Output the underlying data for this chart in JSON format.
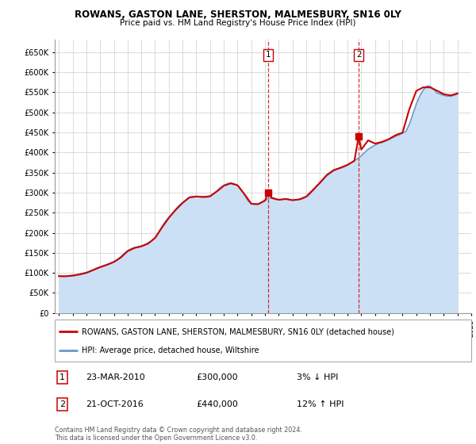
{
  "title": "ROWANS, GASTON LANE, SHERSTON, MALMESBURY, SN16 0LY",
  "subtitle": "Price paid vs. HM Land Registry's House Price Index (HPI)",
  "ylim": [
    0,
    680000
  ],
  "yticks": [
    0,
    50000,
    100000,
    150000,
    200000,
    250000,
    300000,
    350000,
    400000,
    450000,
    500000,
    550000,
    600000,
    650000
  ],
  "ytick_labels": [
    "£0",
    "£50K",
    "£100K",
    "£150K",
    "£200K",
    "£250K",
    "£300K",
    "£350K",
    "£400K",
    "£450K",
    "£500K",
    "£550K",
    "£600K",
    "£650K"
  ],
  "house_color": "#cc0000",
  "hpi_color": "#6699cc",
  "hpi_fill_color": "#cce0f5",
  "sale1_x": 2010.23,
  "sale1_y": 300000,
  "sale1_date": "23-MAR-2010",
  "sale1_price": "£300,000",
  "sale1_hpi": "3% ↓ HPI",
  "sale2_x": 2016.81,
  "sale2_y": 440000,
  "sale2_date": "21-OCT-2016",
  "sale2_price": "£440,000",
  "sale2_hpi": "12% ↑ HPI",
  "legend_house": "ROWANS, GASTON LANE, SHERSTON, MALMESBURY, SN16 0LY (detached house)",
  "legend_hpi": "HPI: Average price, detached house, Wiltshire",
  "footer": "Contains HM Land Registry data © Crown copyright and database right 2024.\nThis data is licensed under the Open Government Licence v3.0.",
  "hpi_data_x": [
    1995.0,
    1995.25,
    1995.5,
    1995.75,
    1996.0,
    1996.25,
    1996.5,
    1996.75,
    1997.0,
    1997.25,
    1997.5,
    1997.75,
    1998.0,
    1998.25,
    1998.5,
    1998.75,
    1999.0,
    1999.25,
    1999.5,
    1999.75,
    2000.0,
    2000.25,
    2000.5,
    2000.75,
    2001.0,
    2001.25,
    2001.5,
    2001.75,
    2002.0,
    2002.25,
    2002.5,
    2002.75,
    2003.0,
    2003.25,
    2003.5,
    2003.75,
    2004.0,
    2004.25,
    2004.5,
    2004.75,
    2005.0,
    2005.25,
    2005.5,
    2005.75,
    2006.0,
    2006.25,
    2006.5,
    2006.75,
    2007.0,
    2007.25,
    2007.5,
    2007.75,
    2008.0,
    2008.25,
    2008.5,
    2008.75,
    2009.0,
    2009.25,
    2009.5,
    2009.75,
    2010.0,
    2010.25,
    2010.5,
    2010.75,
    2011.0,
    2011.25,
    2011.5,
    2011.75,
    2012.0,
    2012.25,
    2012.5,
    2012.75,
    2013.0,
    2013.25,
    2013.5,
    2013.75,
    2014.0,
    2014.25,
    2014.5,
    2014.75,
    2015.0,
    2015.25,
    2015.5,
    2015.75,
    2016.0,
    2016.25,
    2016.5,
    2016.75,
    2017.0,
    2017.25,
    2017.5,
    2017.75,
    2018.0,
    2018.25,
    2018.5,
    2018.75,
    2019.0,
    2019.25,
    2019.5,
    2019.75,
    2020.0,
    2020.25,
    2020.5,
    2020.75,
    2021.0,
    2021.25,
    2021.5,
    2021.75,
    2022.0,
    2022.25,
    2022.5,
    2022.75,
    2023.0,
    2023.25,
    2023.5,
    2023.75,
    2024.0
  ],
  "hpi_data_y": [
    92000,
    91000,
    92000,
    93000,
    94000,
    95000,
    97000,
    99000,
    101000,
    104000,
    108000,
    112000,
    115000,
    118000,
    121000,
    124000,
    128000,
    133000,
    140000,
    148000,
    155000,
    160000,
    163000,
    165000,
    167000,
    170000,
    175000,
    180000,
    188000,
    200000,
    215000,
    228000,
    238000,
    248000,
    258000,
    268000,
    275000,
    282000,
    288000,
    290000,
    291000,
    290000,
    289000,
    288000,
    290000,
    296000,
    304000,
    312000,
    318000,
    322000,
    324000,
    322000,
    318000,
    308000,
    295000,
    280000,
    272000,
    271000,
    272000,
    276000,
    281000,
    285000,
    288000,
    285000,
    282000,
    283000,
    284000,
    283000,
    281000,
    282000,
    283000,
    285000,
    289000,
    296000,
    305000,
    315000,
    323000,
    333000,
    342000,
    348000,
    354000,
    358000,
    361000,
    364000,
    368000,
    374000,
    380000,
    385000,
    392000,
    400000,
    408000,
    413000,
    418000,
    422000,
    425000,
    428000,
    432000,
    436000,
    440000,
    444000,
    448000,
    452000,
    470000,
    495000,
    520000,
    540000,
    555000,
    565000,
    565000,
    558000,
    548000,
    545000,
    542000,
    540000,
    540000,
    542000,
    545000
  ],
  "house_data_x": [
    1995.0,
    1995.5,
    1996.0,
    1996.5,
    1997.0,
    1997.5,
    1998.0,
    1998.5,
    1999.0,
    1999.5,
    2000.0,
    2000.5,
    2001.0,
    2001.5,
    2002.0,
    2002.5,
    2003.0,
    2003.5,
    2004.0,
    2004.5,
    2005.0,
    2005.5,
    2006.0,
    2006.5,
    2007.0,
    2007.5,
    2008.0,
    2008.5,
    2009.0,
    2009.5,
    2010.0,
    2010.23,
    2010.5,
    2011.0,
    2011.5,
    2012.0,
    2012.5,
    2013.0,
    2013.5,
    2014.0,
    2014.5,
    2015.0,
    2015.5,
    2016.0,
    2016.5,
    2016.81,
    2017.0,
    2017.5,
    2018.0,
    2018.5,
    2019.0,
    2019.5,
    2020.0,
    2020.5,
    2021.0,
    2021.5,
    2022.0,
    2022.5,
    2023.0,
    2023.5,
    2024.0
  ],
  "house_data_y": [
    92000,
    91500,
    93000,
    96000,
    100000,
    107000,
    114000,
    120000,
    127000,
    138000,
    154000,
    162000,
    166000,
    173000,
    187000,
    213000,
    237000,
    257000,
    274000,
    288000,
    290000,
    289000,
    291000,
    303000,
    317000,
    323000,
    318000,
    296000,
    272000,
    271000,
    280000,
    300000,
    286000,
    282000,
    284000,
    281000,
    283000,
    290000,
    307000,
    325000,
    344000,
    356000,
    362000,
    369000,
    379000,
    440000,
    407000,
    430000,
    422000,
    426000,
    433000,
    443000,
    449000,
    508000,
    553000,
    562000,
    562000,
    554000,
    545000,
    542000,
    547000
  ],
  "xlim": [
    1994.7,
    2025.0
  ],
  "xticks": [
    1995,
    1996,
    1997,
    1998,
    1999,
    2000,
    2001,
    2002,
    2003,
    2004,
    2005,
    2006,
    2007,
    2008,
    2009,
    2010,
    2011,
    2012,
    2013,
    2014,
    2015,
    2016,
    2017,
    2018,
    2019,
    2020,
    2021,
    2022,
    2023,
    2024,
    2025
  ]
}
